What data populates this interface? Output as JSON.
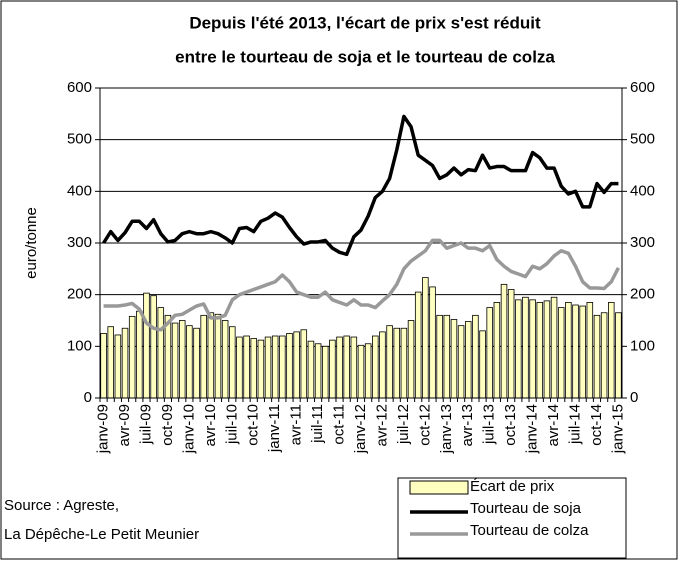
{
  "chart_data": {
    "type": "combo",
    "title": [
      "Depuis l'été 2013, l'écart de prix s'est réduit",
      "entre le tourteau de soja et le tourteau de colza"
    ],
    "ylabel": "euro/tonne",
    "annotations": [
      "Source : Agreste,",
      " La Dépêche-Le Petit Meunier"
    ],
    "categories": [
      "janv-09",
      null,
      null,
      "avr-09",
      null,
      null,
      "juil-09",
      null,
      null,
      "oct-09",
      null,
      null,
      "janv-10",
      null,
      null,
      "avr-10",
      null,
      null,
      "juil-10",
      null,
      null,
      "oct-10",
      null,
      null,
      "janv-11",
      null,
      null,
      "avr-11",
      null,
      null,
      "juil-11",
      null,
      null,
      "oct-11",
      null,
      null,
      "janv-12",
      null,
      null,
      "avr-12",
      null,
      null,
      "juil-12",
      null,
      null,
      "oct-12",
      null,
      null,
      "janv-13",
      null,
      null,
      "avr-13",
      null,
      null,
      "juil-13",
      null,
      null,
      "oct-13",
      null,
      null,
      "janv-14",
      null,
      null,
      "avr-14",
      null,
      null,
      "juil-14",
      null,
      null,
      "oct-14",
      null,
      null,
      "janv-15"
    ],
    "series": [
      {
        "name": "Écart de prix",
        "type": "bar",
        "color": "#ffffc0",
        "values": [
          125,
          138,
          122,
          135,
          158,
          168,
          203,
          198,
          175,
          160,
          145,
          150,
          140,
          135,
          160,
          165,
          162,
          150,
          138,
          118,
          120,
          115,
          112,
          118,
          120,
          120,
          125,
          128,
          132,
          110,
          105,
          100,
          112,
          118,
          120,
          118,
          102,
          105,
          120,
          128,
          140,
          135,
          135,
          150,
          205,
          233,
          215,
          160,
          160,
          152,
          140,
          148,
          160,
          130,
          175,
          185,
          220,
          210,
          190,
          195,
          190,
          185,
          188,
          195,
          175,
          185,
          180,
          178,
          185,
          160,
          165,
          185,
          165
        ]
      },
      {
        "name": "Tourteau de soja",
        "type": "line",
        "color": "#000000",
        "values": [
          300,
          322,
          305,
          320,
          342,
          342,
          328,
          345,
          318,
          302,
          305,
          318,
          322,
          318,
          318,
          322,
          318,
          310,
          300,
          328,
          330,
          322,
          342,
          348,
          358,
          350,
          330,
          312,
          298,
          302,
          302,
          305,
          290,
          282,
          278,
          312,
          325,
          352,
          388,
          400,
          425,
          480,
          545,
          525,
          470,
          460,
          450,
          425,
          432,
          445,
          432,
          442,
          440,
          470,
          445,
          448,
          448,
          440,
          440,
          440,
          475,
          465,
          445,
          445,
          410,
          395,
          400,
          370,
          370,
          415,
          398,
          415,
          415
        ]
      },
      {
        "name": "Tourteau de colza",
        "type": "line",
        "color": "#999999",
        "values": [
          178,
          178,
          178,
          180,
          183,
          172,
          145,
          135,
          132,
          145,
          160,
          162,
          170,
          178,
          182,
          155,
          155,
          160,
          190,
          200,
          205,
          210,
          215,
          220,
          225,
          238,
          225,
          205,
          200,
          195,
          195,
          205,
          190,
          185,
          180,
          190,
          180,
          180,
          175,
          188,
          200,
          220,
          250,
          265,
          275,
          285,
          305,
          305,
          290,
          295,
          300,
          290,
          290,
          285,
          295,
          268,
          255,
          245,
          240,
          235,
          255,
          250,
          260,
          275,
          285,
          280,
          255,
          225,
          213,
          213,
          212,
          225,
          252
        ]
      }
    ],
    "ylim": [
      0,
      600
    ],
    "yticks": [
      0,
      100,
      200,
      300,
      400,
      500,
      600
    ],
    "y2lim": [
      0,
      600
    ],
    "y2ticks": [
      0,
      100,
      200,
      300,
      400,
      500,
      600
    ],
    "grid": true,
    "legend": "lower right"
  }
}
